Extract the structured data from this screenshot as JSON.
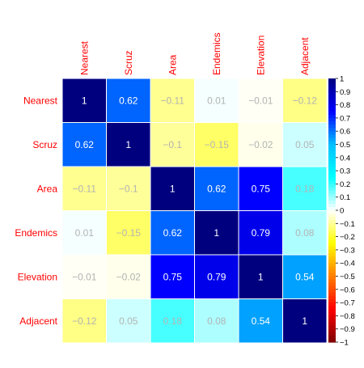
{
  "chart_data": {
    "type": "heatmap",
    "variables": [
      "Nearest",
      "Scruz",
      "Area",
      "Endemics",
      "Elevation",
      "Adjacent"
    ],
    "matrix": [
      [
        1,
        0.62,
        -0.11,
        0.01,
        -0.01,
        -0.12
      ],
      [
        0.62,
        1,
        -0.1,
        -0.15,
        -0.02,
        0.05
      ],
      [
        -0.11,
        -0.1,
        1,
        0.62,
        0.75,
        0.18
      ],
      [
        0.01,
        -0.15,
        0.62,
        1,
        0.79,
        0.08
      ],
      [
        -0.01,
        -0.02,
        0.75,
        0.79,
        1,
        0.54
      ],
      [
        -0.12,
        0.05,
        0.18,
        0.08,
        0.54,
        1
      ]
    ],
    "labels": [
      [
        "1",
        "0.62",
        "−0.11",
        "0.01",
        "−0.01",
        "−0.12"
      ],
      [
        "0.62",
        "1",
        "−0.1",
        "−0.15",
        "−0.02",
        "0.05"
      ],
      [
        "−0.11",
        "−0.1",
        "1",
        "0.62",
        "0.75",
        "0.18"
      ],
      [
        "0.01",
        "−0.15",
        "0.62",
        "1",
        "0.79",
        "0.08"
      ],
      [
        "−0.01",
        "−0.02",
        "0.75",
        "0.79",
        "1",
        "0.54"
      ],
      [
        "−0.12",
        "0.05",
        "0.18",
        "0.08",
        "0.54",
        "1"
      ]
    ],
    "value_range": [
      -1,
      1
    ],
    "colorbar": {
      "ticks": [
        "1",
        "0.9",
        "0.8",
        "0.7",
        "0.6",
        "0.5",
        "0.4",
        "0.3",
        "0.2",
        "0.1",
        "0",
        "−0.1",
        "−0.2",
        "−0.3",
        "−0.4",
        "−0.5",
        "−0.6",
        "−0.7",
        "−0.8",
        "−0.9",
        "−1"
      ],
      "tick_values": [
        1,
        0.9,
        0.8,
        0.7,
        0.6,
        0.5,
        0.4,
        0.3,
        0.2,
        0.1,
        0,
        -0.1,
        -0.2,
        -0.3,
        -0.4,
        -0.5,
        -0.6,
        -0.7,
        -0.8,
        -0.9,
        -1
      ],
      "position": "right"
    },
    "colors": {
      "label_text": "#ff0000",
      "diag_text": "#ffffff",
      "light_text": "#b3b3b3",
      "cell_border": "#ffffff",
      "scale": [
        "#7f0000",
        "#ff0000",
        "#ff7f00",
        "#ffff00",
        "#ffffff",
        "#00ffff",
        "#00c0ff",
        "#0000ff",
        "#00007f"
      ]
    }
  }
}
